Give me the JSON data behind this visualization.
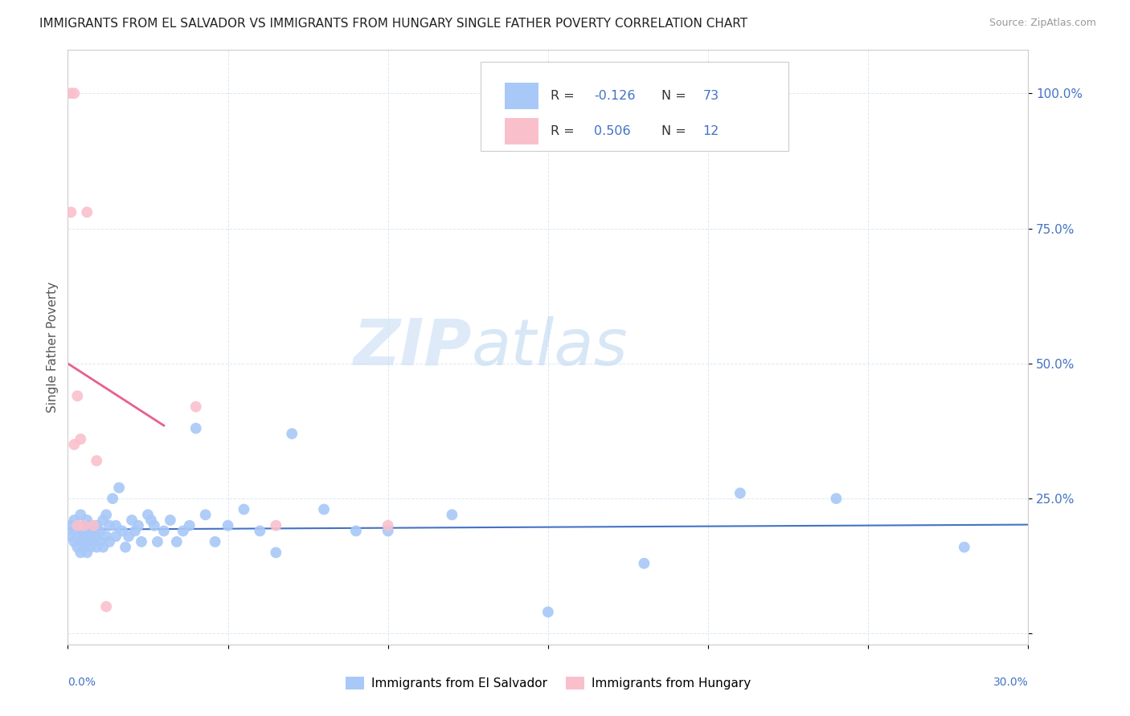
{
  "title": "IMMIGRANTS FROM EL SALVADOR VS IMMIGRANTS FROM HUNGARY SINGLE FATHER POVERTY CORRELATION CHART",
  "source": "Source: ZipAtlas.com",
  "ylabel": "Single Father Poverty",
  "y_ticks": [
    0.0,
    0.25,
    0.5,
    0.75,
    1.0
  ],
  "y_tick_labels": [
    "",
    "25.0%",
    "50.0%",
    "75.0%",
    "100.0%"
  ],
  "x_lim": [
    0.0,
    0.3
  ],
  "y_lim": [
    -0.02,
    1.08
  ],
  "blue_color": "#a8c8f8",
  "pink_color": "#f9c0cc",
  "blue_line_color": "#4472c4",
  "pink_line_color": "#e8608a",
  "watermark_zip": "ZIP",
  "watermark_atlas": "atlas",
  "el_salvador_x": [
    0.001,
    0.001,
    0.002,
    0.002,
    0.002,
    0.003,
    0.003,
    0.003,
    0.004,
    0.004,
    0.004,
    0.005,
    0.005,
    0.005,
    0.005,
    0.006,
    0.006,
    0.006,
    0.006,
    0.007,
    0.007,
    0.007,
    0.008,
    0.008,
    0.008,
    0.009,
    0.009,
    0.009,
    0.01,
    0.01,
    0.011,
    0.011,
    0.012,
    0.012,
    0.013,
    0.013,
    0.014,
    0.015,
    0.015,
    0.016,
    0.017,
    0.018,
    0.019,
    0.02,
    0.021,
    0.022,
    0.023,
    0.025,
    0.026,
    0.027,
    0.028,
    0.03,
    0.032,
    0.034,
    0.036,
    0.038,
    0.04,
    0.043,
    0.046,
    0.05,
    0.055,
    0.06,
    0.065,
    0.07,
    0.08,
    0.09,
    0.1,
    0.12,
    0.15,
    0.18,
    0.21,
    0.24,
    0.28
  ],
  "el_salvador_y": [
    0.18,
    0.2,
    0.17,
    0.19,
    0.21,
    0.16,
    0.18,
    0.2,
    0.15,
    0.17,
    0.22,
    0.16,
    0.18,
    0.2,
    0.19,
    0.17,
    0.15,
    0.21,
    0.18,
    0.19,
    0.16,
    0.2,
    0.18,
    0.17,
    0.19,
    0.16,
    0.18,
    0.2,
    0.17,
    0.19,
    0.21,
    0.16,
    0.22,
    0.18,
    0.17,
    0.2,
    0.25,
    0.18,
    0.2,
    0.27,
    0.19,
    0.16,
    0.18,
    0.21,
    0.19,
    0.2,
    0.17,
    0.22,
    0.21,
    0.2,
    0.17,
    0.19,
    0.21,
    0.17,
    0.19,
    0.2,
    0.38,
    0.22,
    0.17,
    0.2,
    0.23,
    0.19,
    0.15,
    0.37,
    0.23,
    0.19,
    0.19,
    0.22,
    0.04,
    0.13,
    0.26,
    0.25,
    0.16
  ],
  "hungary_x": [
    0.001,
    0.002,
    0.003,
    0.004,
    0.005,
    0.006,
    0.008,
    0.009,
    0.012,
    0.04,
    0.065,
    0.1
  ],
  "hungary_y": [
    1.0,
    1.0,
    0.44,
    0.36,
    0.2,
    0.78,
    0.2,
    0.32,
    0.05,
    0.42,
    0.2,
    0.2
  ],
  "hungary_extra_points": [
    [
      0.001,
      0.78
    ],
    [
      0.002,
      0.35
    ],
    [
      0.003,
      0.2
    ]
  ]
}
